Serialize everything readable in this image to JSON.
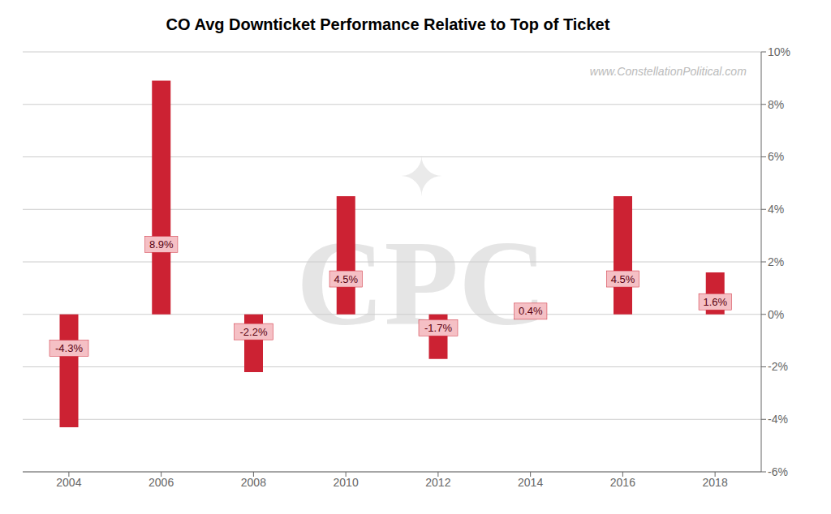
{
  "chart_data": {
    "type": "bar",
    "title": "CO Avg Downticket Performance Relative to Top of Ticket",
    "annotations": [
      "www.ConstellationPolitical.com",
      "CPC",
      "✦"
    ],
    "categories": [
      "2004",
      "2006",
      "2008",
      "2010",
      "2012",
      "2014",
      "2016",
      "2018"
    ],
    "values": [
      -4.3,
      8.9,
      -2.2,
      4.5,
      -1.7,
      0.4,
      4.5,
      1.6
    ],
    "value_labels": [
      "-4.3%",
      "8.9%",
      "-2.2%",
      "4.5%",
      "-1.7%",
      "0.4%",
      "4.5%",
      "1.6%"
    ],
    "data_labels": true,
    "color": "#cc2233",
    "ylim": [
      -6,
      10
    ],
    "yticks": [
      {
        "value": -6,
        "label": "-6%"
      },
      {
        "value": -4,
        "label": "-4%"
      },
      {
        "value": -2,
        "label": "-2%"
      },
      {
        "value": 0,
        "label": "0%"
      },
      {
        "value": 2,
        "label": "2%"
      },
      {
        "value": 4,
        "label": "4%"
      },
      {
        "value": 6,
        "label": "6%"
      },
      {
        "value": 8,
        "label": "8%"
      },
      {
        "value": 10,
        "label": "10%"
      }
    ],
    "grid": true
  }
}
